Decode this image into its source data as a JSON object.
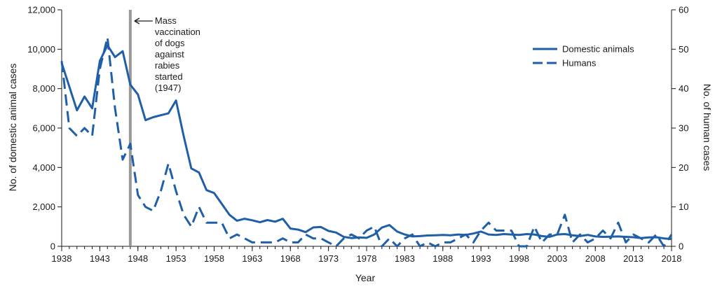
{
  "chart_data": {
    "type": "line",
    "title": "",
    "xlabel": "Year",
    "ylabel_left": "No. of domestic animal cases",
    "ylabel_right": "No. of human cases",
    "xlim": [
      1938,
      2018
    ],
    "ylim_left": [
      0,
      12000
    ],
    "ylim_right": [
      0,
      60
    ],
    "x_ticks": [
      1938,
      1943,
      1948,
      1953,
      1958,
      1963,
      1968,
      1973,
      1978,
      1983,
      1988,
      1993,
      1998,
      2003,
      2008,
      2013,
      2018
    ],
    "y_ticks_left": [
      "0",
      "2,000",
      "4,000",
      "6,000",
      "8,000",
      "10,000",
      "12,000"
    ],
    "y_ticks_left_values": [
      0,
      2000,
      4000,
      6000,
      8000,
      10000,
      12000
    ],
    "y_ticks_right": [
      0,
      10,
      20,
      30,
      40,
      50,
      60
    ],
    "grid": false,
    "legend_position": "top-right",
    "colors": {
      "line": "#1f5fa8",
      "marker": "#999999",
      "axis": "#1a1a1a"
    },
    "annotation": {
      "year": 1947,
      "lines": [
        "Mass",
        "vaccination",
        "of dogs",
        "against",
        "rabies",
        "started",
        "(1947)"
      ]
    },
    "series": [
      {
        "name": "Domestic animals",
        "axis": "left",
        "style": "solid",
        "x": [
          1938,
          1939,
          1940,
          1941,
          1942,
          1943,
          1944,
          1945,
          1946,
          1947,
          1948,
          1949,
          1950,
          1951,
          1952,
          1953,
          1954,
          1955,
          1956,
          1957,
          1958,
          1959,
          1960,
          1961,
          1962,
          1963,
          1964,
          1965,
          1966,
          1967,
          1968,
          1969,
          1970,
          1971,
          1972,
          1973,
          1974,
          1975,
          1976,
          1977,
          1978,
          1979,
          1980,
          1981,
          1982,
          1983,
          1984,
          1985,
          1986,
          1987,
          1988,
          1989,
          1990,
          1991,
          1992,
          1993,
          1994,
          1995,
          1996,
          1997,
          1998,
          1999,
          2000,
          2001,
          2002,
          2003,
          2004,
          2005,
          2006,
          2007,
          2008,
          2009,
          2010,
          2011,
          2012,
          2013,
          2014,
          2015,
          2016,
          2017,
          2018
        ],
        "values": [
          9300,
          8100,
          6900,
          7600,
          7000,
          9400,
          10200,
          9600,
          9900,
          8200,
          7700,
          6400,
          6550,
          6650,
          6750,
          7400,
          5600,
          3950,
          3750,
          2850,
          2700,
          2150,
          1600,
          1300,
          1400,
          1320,
          1220,
          1330,
          1250,
          1400,
          900,
          850,
          720,
          960,
          980,
          780,
          700,
          480,
          420,
          450,
          430,
          600,
          950,
          1080,
          750,
          600,
          500,
          520,
          550,
          560,
          580,
          560,
          600,
          580,
          650,
          750,
          600,
          580,
          620,
          600,
          580,
          620,
          600,
          520,
          480,
          600,
          620,
          560,
          520,
          580,
          500,
          480,
          490,
          500,
          480,
          460,
          420,
          450,
          460,
          400,
          370
        ]
      },
      {
        "name": "Humans",
        "axis": "right",
        "style": "dashed",
        "x": [
          1938,
          1939,
          1940,
          1941,
          1942,
          1943,
          1944,
          1945,
          1946,
          1947,
          1948,
          1949,
          1950,
          1951,
          1952,
          1953,
          1954,
          1955,
          1956,
          1957,
          1958,
          1959,
          1960,
          1961,
          1962,
          1963,
          1964,
          1965,
          1966,
          1967,
          1968,
          1969,
          1970,
          1971,
          1972,
          1973,
          1974,
          1975,
          1976,
          1977,
          1978,
          1979,
          1980,
          1981,
          1982,
          1983,
          1984,
          1985,
          1986,
          1987,
          1988,
          1989,
          1990,
          1991,
          1992,
          1993,
          1994,
          1995,
          1996,
          1997,
          1998,
          1999,
          2000,
          2001,
          2002,
          2003,
          2004,
          2005,
          2006,
          2007,
          2008,
          2009,
          2010,
          2011,
          2012,
          2013,
          2014,
          2015,
          2016,
          2017,
          2018
        ],
        "values": [
          47,
          30,
          28,
          30,
          28,
          45,
          53,
          35,
          22,
          26,
          13,
          10,
          9,
          14,
          21,
          14,
          8,
          5,
          10,
          6,
          6,
          6,
          2,
          3,
          2,
          1,
          1,
          1,
          1,
          2,
          1,
          1,
          3,
          2,
          2,
          1,
          0,
          2,
          3,
          2,
          4,
          5,
          0,
          2,
          0,
          2,
          3,
          0,
          1,
          0,
          1,
          1,
          2,
          3,
          1,
          4,
          6,
          4,
          4,
          4,
          0,
          0,
          5,
          1,
          3,
          3,
          8,
          1,
          3,
          1,
          2,
          4,
          2,
          6,
          1,
          3,
          2,
          1,
          3,
          0,
          3
        ]
      }
    ]
  }
}
